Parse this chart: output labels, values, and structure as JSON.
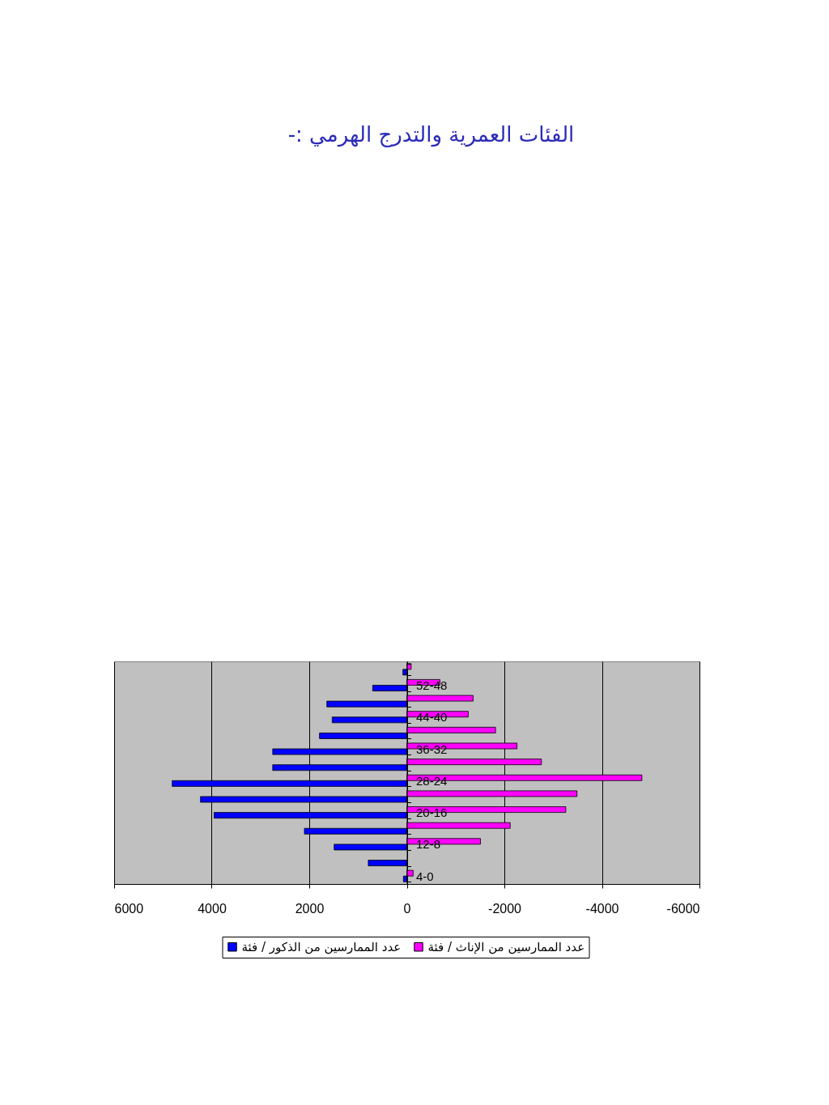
{
  "chart_data": {
    "type": "bar",
    "orientation": "horizontal",
    "title": "الفئات العمرية والتدرج الهرمي :-",
    "categories": [
      null,
      "52-48",
      null,
      "44-40",
      null,
      "36-32",
      null,
      "28-24",
      null,
      "20-16",
      null,
      "12-8",
      null,
      "4-0"
    ],
    "series": [
      {
        "name": "عدد الممارسين من الذكور / فئة",
        "color": "#0000ff",
        "values": [
          80,
          700,
          1640,
          1530,
          1790,
          2750,
          2750,
          4810,
          4230,
          3950,
          2100,
          1490,
          790,
          70
        ]
      },
      {
        "name": "عدد الممارسين من الإناث / فئة",
        "color": "#ff00ff",
        "values": [
          -90,
          -680,
          -1360,
          -1260,
          -1820,
          -2260,
          -2760,
          -4820,
          -3490,
          -3260,
          -2120,
          -1510,
          null,
          -130
        ]
      }
    ],
    "xlim": [
      6000,
      -6000
    ],
    "xticks": [
      6000,
      4000,
      2000,
      0,
      -2000,
      -4000,
      -6000
    ],
    "grid": "x",
    "legend": "bottom"
  }
}
